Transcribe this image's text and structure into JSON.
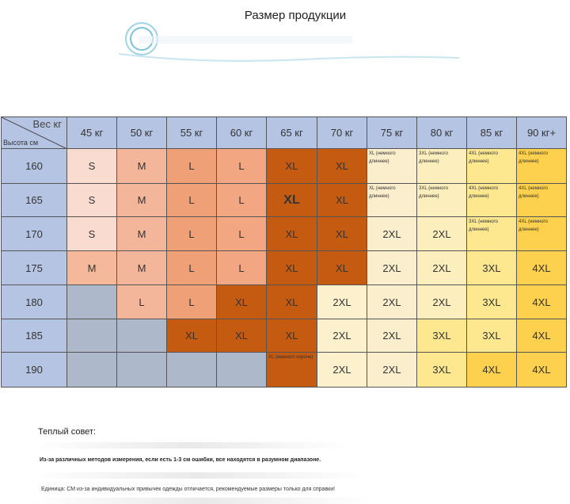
{
  "title": "Размер продукции",
  "corner": {
    "weight_label": "Вес кг",
    "height_label": "Высота см"
  },
  "weights": [
    "45 кг",
    "50 кг",
    "55 кг",
    "60 кг",
    "65 кг",
    "70 кг",
    "75 кг",
    "80 кг",
    "85 кг",
    "90 кг+"
  ],
  "rows": [
    {
      "height": "160",
      "sizes": [
        "S",
        "M",
        "L",
        "L",
        "XL",
        "XL",
        "XL (немного длиннее)",
        "3XL (немного длиннее)",
        "4XL (немного длиннее)",
        "4XL (немного длиннее)"
      ]
    },
    {
      "height": "165",
      "sizes": [
        "S",
        "M",
        "L",
        "L",
        "XL",
        "XL",
        "XL (немного длиннее)",
        "3XL (немного длиннее)",
        "4XL (немного длиннее)",
        "4XL (немного длиннее)"
      ]
    },
    {
      "height": "170",
      "sizes": [
        "S",
        "M",
        "L",
        "L",
        "XL",
        "XL",
        "2XL",
        "2XL",
        "3XL (немного длиннее)",
        "4XL (немного длиннее)"
      ]
    },
    {
      "height": "175",
      "sizes": [
        "M",
        "M",
        "L",
        "L",
        "XL",
        "XL",
        "2XL",
        "2XL",
        "3XL",
        "4XL"
      ]
    },
    {
      "height": "180",
      "sizes": [
        "",
        "L",
        "L",
        "XL",
        "XL",
        "2XL",
        "2XL",
        "2XL",
        "3XL",
        "4XL"
      ]
    },
    {
      "height": "185",
      "sizes": [
        "",
        "",
        "XL",
        "XL",
        "XL",
        "2XL",
        "2XL",
        "3XL",
        "3XL",
        "4XL"
      ]
    },
    {
      "height": "190",
      "sizes": [
        "",
        "",
        "",
        "",
        "XL (немного короче)",
        "2XL",
        "2XL",
        "3XL",
        "4XL",
        "4XL"
      ]
    }
  ],
  "cell_colors": [
    [
      "#f9dccf",
      "#f3b69b",
      "#efa077",
      "#f2a782",
      "#c55a11",
      "#c55a11",
      "#fbeecc",
      "#fcefbd",
      "#fde890",
      "#fdd14d"
    ],
    [
      "#f9dccf",
      "#f3b69b",
      "#efa077",
      "#f2a782",
      "#c55a11",
      "#c55a11",
      "#fbeecc",
      "#fcefbd",
      "#fde890",
      "#fdd14d"
    ],
    [
      "#f9dccf",
      "#f3b69b",
      "#efa077",
      "#f2a782",
      "#c55a11",
      "#c55a11",
      "#fbeecc",
      "#fcefbd",
      "#fde890",
      "#fdd14d"
    ],
    [
      "#f5b89b",
      "#f3b69b",
      "#efa077",
      "#f2a782",
      "#c55a11",
      "#c55a11",
      "#fbeecc",
      "#fcefbd",
      "#fde890",
      "#fdd14d"
    ],
    [
      "#adb9ca",
      "#f3b69b",
      "#efa077",
      "#c55a11",
      "#c55a11",
      "#fdf0cd",
      "#fbeecc",
      "#fcefbd",
      "#fde890",
      "#fdd14d"
    ],
    [
      "#adb9ca",
      "#adb9ca",
      "#c55a11",
      "#c55a11",
      "#c55a11",
      "#fdf0cd",
      "#fbeecc",
      "#fde890",
      "#fde890",
      "#fdd14d"
    ],
    [
      "#adb9ca",
      "#adb9ca",
      "#adb9ca",
      "#adb9ca",
      "#c55a11",
      "#fdf0cd",
      "#fbeecc",
      "#fde890",
      "#fdd14d",
      "#fdd14d"
    ]
  ],
  "tip": {
    "title": "Теплый совет:",
    "line1": "Из-за различных методов измерения, если есть 1-3 см ошибки, все находятся в разумном диапазоне.",
    "line2": "Единица: СМ из-за индивидуальных привычек одежды отличается, рекомендуемые размеры только для справки!"
  }
}
